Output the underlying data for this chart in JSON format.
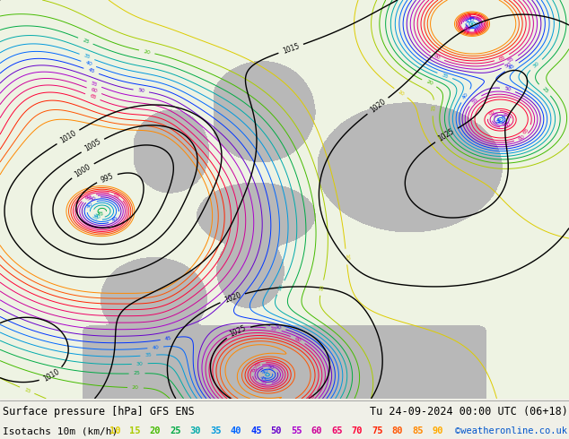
{
  "title_left": "Surface pressure [hPa] GFS ENS",
  "title_right": "Tu 24-09-2024 00:00 UTC (06+18)",
  "legend_label": "Isotachs 10m (km/h)",
  "copyright": "©weatheronline.co.uk",
  "isotach_values": [
    10,
    15,
    20,
    25,
    30,
    35,
    40,
    45,
    50,
    55,
    60,
    65,
    70,
    75,
    80,
    85,
    90
  ],
  "isotach_colors": [
    "#ddcc00",
    "#aacc00",
    "#44bb00",
    "#00aa44",
    "#00aaaa",
    "#0099dd",
    "#0066ff",
    "#0033ff",
    "#6600cc",
    "#aa00cc",
    "#cc0099",
    "#ee0066",
    "#ff0033",
    "#ff2200",
    "#ff5500",
    "#ff8800",
    "#ffaa00"
  ],
  "bg_color": "#f0f0e8",
  "map_bg_white": "#ffffff",
  "map_bg_green": "#c8e8a0",
  "land_gray": "#b8b8b8",
  "sea_white": "#f0f0f0",
  "fig_width": 6.34,
  "fig_height": 4.9,
  "dpi": 100,
  "bottom_bar_color": "#f0f0e8",
  "title_fontsize": 8.5,
  "legend_fontsize": 8.0
}
